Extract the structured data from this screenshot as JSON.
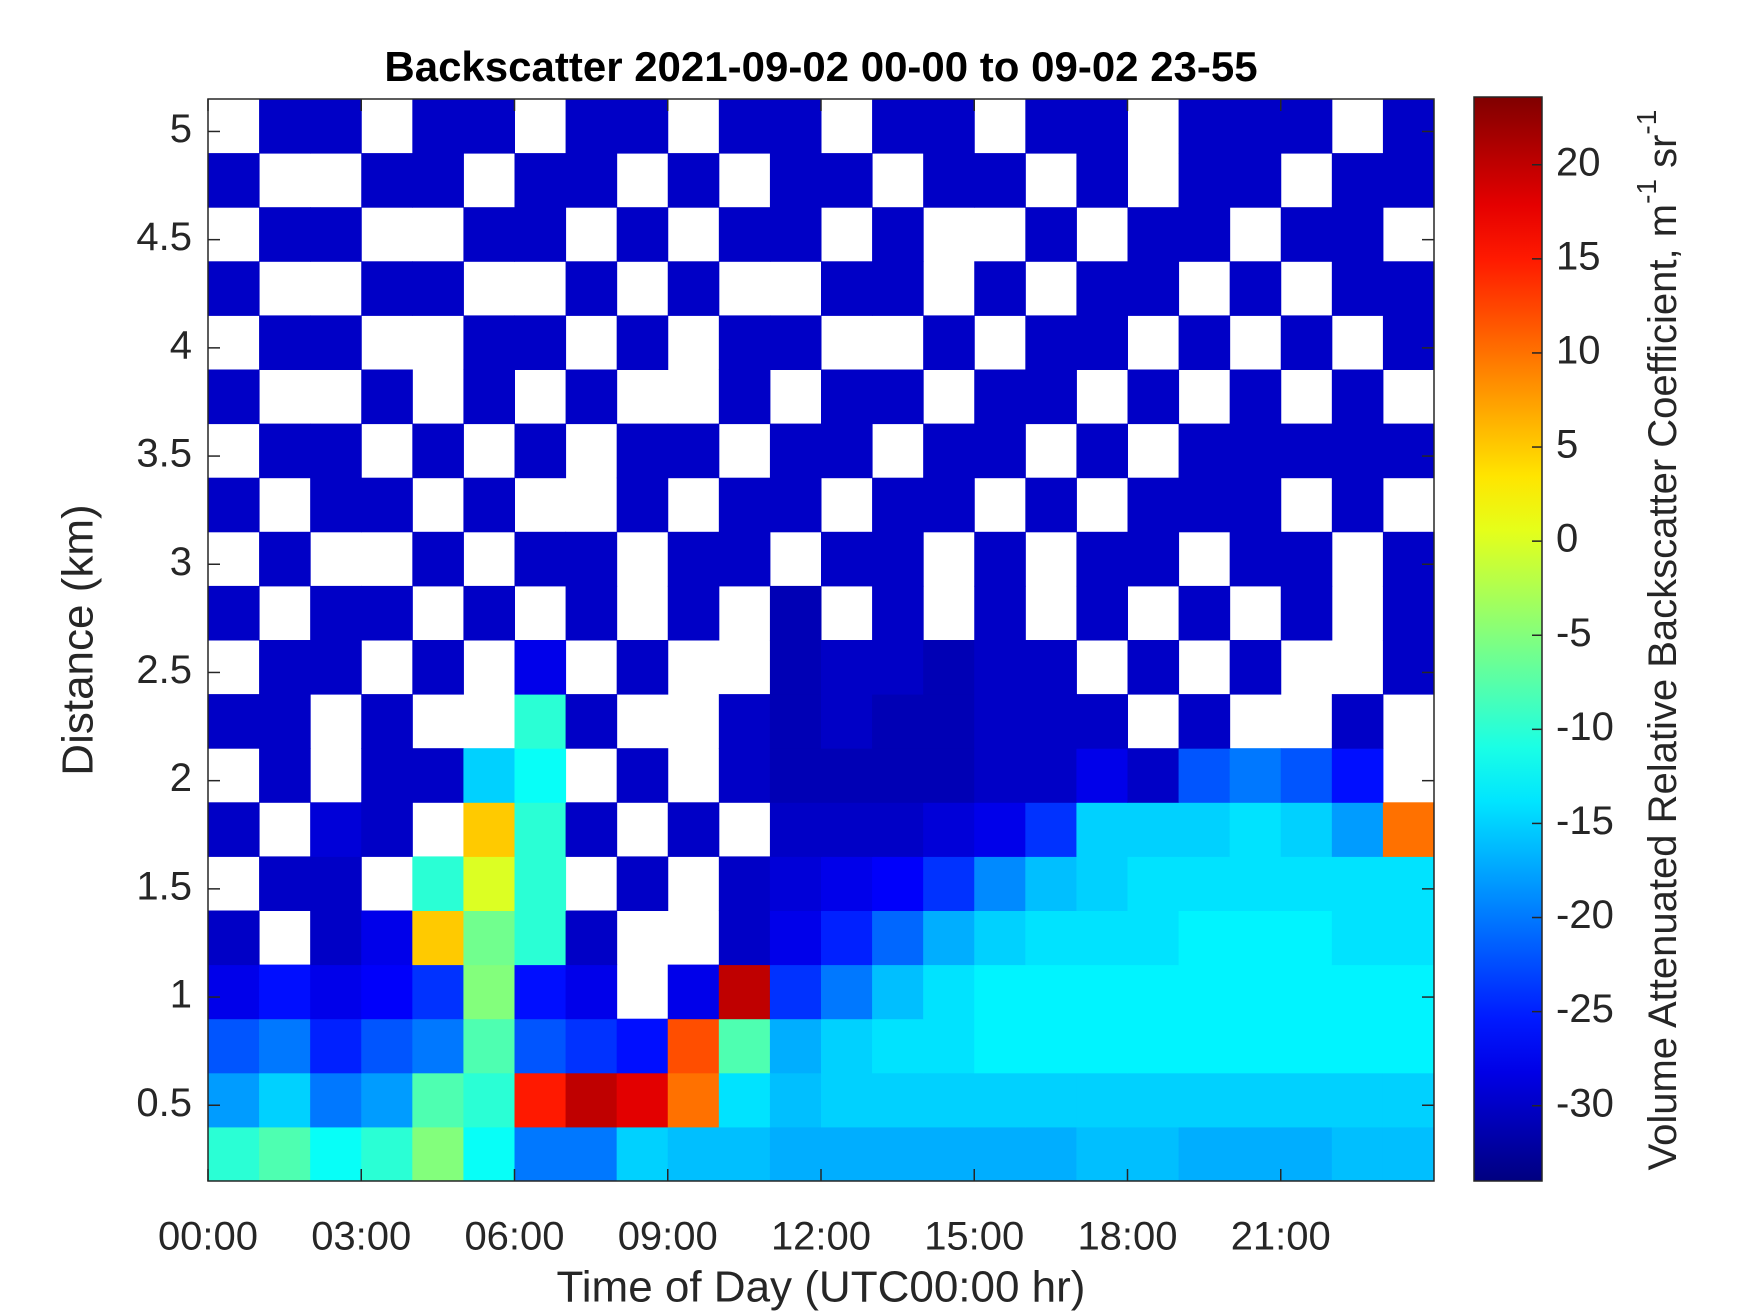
{
  "chart_data": {
    "type": "heatmap",
    "title": "Backscatter 2021-09-02 00-00 to 09-02 23-55",
    "x_label": "Time of Day (UTC00:00 hr)",
    "y_label": "Distance (km)",
    "colorbar_label": [
      "Volume Attenuated Relative Backscatter Coefficient, m",
      "-1",
      " sr",
      "-1"
    ],
    "colormap": "jet",
    "x": [
      0,
      1,
      2,
      3,
      4,
      5,
      6,
      7,
      8,
      9,
      10,
      11,
      12,
      13,
      14,
      15,
      16,
      17,
      18,
      19,
      20,
      21,
      22,
      23,
      24
    ],
    "y": [
      0.15,
      0.4,
      0.65,
      0.9,
      1.15,
      1.4,
      1.65,
      1.9,
      2.15,
      2.4,
      2.65,
      2.9,
      3.15,
      3.4,
      3.65,
      3.9,
      4.15,
      4.4,
      4.65,
      4.9,
      5.15
    ],
    "values": [
      [
        -10,
        -8,
        -12,
        -10,
        -5,
        -12,
        -20,
        -20,
        -15,
        -16,
        -16,
        -17,
        -17,
        -17,
        -17,
        -17,
        -17,
        -16,
        -16,
        -17,
        -17,
        -17,
        -16,
        -16
      ],
      [
        -18,
        -15,
        -20,
        -18,
        -8,
        -10,
        15,
        20,
        18,
        10,
        -14,
        -16,
        -15,
        -15,
        -15,
        -15,
        -15,
        -15,
        -15,
        -15,
        -15,
        -15,
        -15,
        -15
      ],
      [
        -22,
        -20,
        -25,
        -22,
        -20,
        -8,
        -22,
        -24,
        -26,
        12,
        -8,
        -17,
        -15,
        -14,
        -14,
        -13,
        -13,
        -13,
        -13,
        -13,
        -13,
        -13,
        -13,
        -13
      ],
      [
        -28,
        -26,
        -28,
        -27,
        -24,
        -5,
        -26,
        -28,
        null,
        -28,
        20,
        -24,
        -20,
        -16,
        -14,
        -13,
        -13,
        -13,
        -13,
        -13,
        -13,
        -13,
        -13,
        -13
      ],
      [
        -30,
        null,
        -30,
        -28,
        5,
        -6,
        -10,
        -30,
        null,
        null,
        -30,
        -28,
        -25,
        -21,
        -17,
        -15,
        -14,
        -14,
        -14,
        -13,
        -13,
        -13,
        -14,
        -14
      ],
      [
        null,
        -30,
        -30,
        null,
        -10,
        0,
        -10,
        null,
        -30,
        null,
        -30,
        -29,
        -28,
        -27,
        -24,
        -19,
        -16,
        -15,
        -14,
        -14,
        -14,
        -14,
        -14,
        -14
      ],
      [
        -30,
        null,
        -29,
        -30,
        null,
        5,
        -10,
        -30,
        null,
        -30,
        null,
        -30,
        -30,
        -30,
        -29,
        -28,
        -24,
        -15,
        -15,
        -15,
        -14,
        -15,
        -18,
        10
      ],
      [
        null,
        -30,
        null,
        -30,
        -30,
        -15,
        -12,
        null,
        -30,
        null,
        -30,
        -31,
        -31,
        -31,
        -31,
        -30,
        -30,
        -28,
        -30,
        -22,
        -20,
        -22,
        -26,
        null
      ],
      [
        -30,
        -30,
        null,
        -30,
        null,
        null,
        -10,
        -30,
        null,
        null,
        -30,
        -31,
        -30,
        -31,
        -31,
        -30,
        -30,
        -30,
        null,
        -30,
        null,
        null,
        -30,
        null
      ],
      [
        null,
        -30,
        -30,
        null,
        -30,
        null,
        -28,
        null,
        -30,
        null,
        null,
        -31,
        -30,
        -30,
        -31,
        -30,
        -30,
        null,
        -30,
        null,
        -30,
        null,
        null,
        -30
      ],
      [
        -30,
        null,
        -30,
        -30,
        null,
        -30,
        null,
        -30,
        null,
        -30,
        null,
        -31,
        null,
        -30,
        null,
        -30,
        null,
        -30,
        null,
        -30,
        null,
        -30,
        null,
        -30
      ],
      [
        null,
        -30,
        null,
        null,
        -30,
        null,
        -30,
        -30,
        null,
        -30,
        -30,
        null,
        -30,
        -30,
        null,
        -30,
        null,
        -30,
        -30,
        null,
        -30,
        -30,
        null,
        -30
      ],
      [
        -30,
        null,
        -30,
        -30,
        null,
        -30,
        null,
        null,
        -30,
        null,
        -30,
        -30,
        null,
        -30,
        -30,
        null,
        -30,
        null,
        -30,
        -30,
        -30,
        null,
        -30,
        null
      ],
      [
        null,
        -30,
        -30,
        null,
        -30,
        null,
        -30,
        null,
        -30,
        -30,
        null,
        -30,
        -30,
        null,
        -30,
        -30,
        null,
        -30,
        null,
        -30,
        -30,
        -30,
        -30,
        -30
      ],
      [
        -30,
        null,
        null,
        -30,
        null,
        -30,
        null,
        -30,
        null,
        null,
        -30,
        null,
        -30,
        -30,
        null,
        -30,
        -30,
        null,
        -30,
        null,
        -30,
        null,
        -30,
        null
      ],
      [
        null,
        -30,
        -30,
        null,
        null,
        -30,
        -30,
        null,
        -30,
        null,
        -30,
        -30,
        null,
        null,
        -30,
        null,
        -30,
        -30,
        null,
        -30,
        null,
        -30,
        null,
        -30
      ],
      [
        -30,
        null,
        null,
        -30,
        -30,
        null,
        null,
        -30,
        null,
        -30,
        null,
        null,
        -30,
        -30,
        null,
        -30,
        null,
        -30,
        -30,
        null,
        -30,
        null,
        -30,
        -30
      ],
      [
        null,
        -30,
        -30,
        null,
        null,
        -30,
        -30,
        null,
        -30,
        null,
        -30,
        -30,
        null,
        -30,
        null,
        null,
        -30,
        null,
        -30,
        -30,
        null,
        -30,
        -30,
        null
      ],
      [
        -30,
        null,
        null,
        -30,
        -30,
        null,
        -30,
        -30,
        null,
        -30,
        null,
        -30,
        -30,
        null,
        -30,
        -30,
        null,
        -30,
        null,
        -30,
        -30,
        null,
        -30,
        -30
      ],
      [
        null,
        -30,
        -30,
        null,
        -30,
        -30,
        null,
        -30,
        -30,
        null,
        -30,
        -30,
        null,
        -30,
        -30,
        null,
        -30,
        -30,
        null,
        -30,
        -30,
        -30,
        null,
        -30
      ]
    ],
    "xlim": [
      0,
      24
    ],
    "ylim": [
      0.15,
      5.15
    ],
    "clim": [
      -34,
      23.6
    ],
    "xticks": [
      {
        "value": 0,
        "label": "00:00"
      },
      {
        "value": 3,
        "label": "03:00"
      },
      {
        "value": 6,
        "label": "06:00"
      },
      {
        "value": 9,
        "label": "09:00"
      },
      {
        "value": 12,
        "label": "12:00"
      },
      {
        "value": 15,
        "label": "15:00"
      },
      {
        "value": 18,
        "label": "18:00"
      },
      {
        "value": 21,
        "label": "21:00"
      }
    ],
    "yticks": [
      0.5,
      1,
      1.5,
      2,
      2.5,
      3,
      3.5,
      4,
      4.5,
      5
    ],
    "cticks": [
      -30,
      -25,
      -20,
      -15,
      -10,
      -5,
      0,
      5,
      10,
      15,
      20
    ]
  }
}
